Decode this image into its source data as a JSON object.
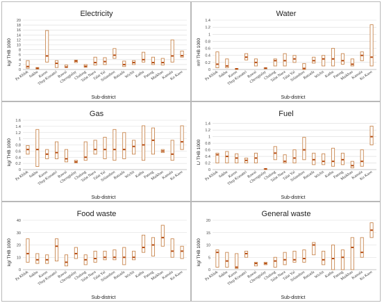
{
  "colors": {
    "box_stroke": "#c8864e",
    "median": "#b5470d",
    "grid": "#d9d9d9",
    "axis": "#8c8c8c"
  },
  "chart_data": [
    {
      "type": "range",
      "title": "Electricity",
      "ylabel": "kg/ THB 1000",
      "xlabel": "Sub-district",
      "ylim": [
        0,
        20
      ],
      "yticks": [
        "0",
        "2",
        "4",
        "6",
        "8",
        "10",
        "12",
        "14",
        "16",
        "18",
        "20"
      ],
      "categories": [
        "Pa Khlok",
        "Sakhu",
        "Karon",
        "Thep Krasattri",
        "Rawai",
        "Cherngtalay",
        "Chalong",
        "Talat Nuea",
        "Talat Yai",
        "SiSunthon",
        "Ratsada",
        "Wichit",
        "Kathu",
        "Patong",
        "Maikhao",
        "Kamala",
        "Ko Kaeo"
      ],
      "values": [
        {
          "min": 0.5,
          "median": 1.2,
          "max": 3.6
        },
        {
          "min": 0.2,
          "median": 0.5,
          "max": 0.8
        },
        {
          "min": 3.0,
          "median": 5.5,
          "max": 15.8
        },
        {
          "min": 0.8,
          "median": 2.5,
          "max": 3.6
        },
        {
          "min": 0.8,
          "median": 1.0,
          "max": 1.8
        },
        {
          "min": 2.8,
          "median": 3.4,
          "max": 3.8
        },
        {
          "min": 0.9,
          "median": 1.3,
          "max": 2.0
        },
        {
          "min": 1.8,
          "median": 2.8,
          "max": 5.0
        },
        {
          "min": 2.0,
          "median": 3.2,
          "max": 4.8
        },
        {
          "min": 4.5,
          "median": 5.8,
          "max": 8.5
        },
        {
          "min": 1.2,
          "median": 2.0,
          "max": 3.4
        },
        {
          "min": 2.0,
          "median": 2.8,
          "max": 3.6
        },
        {
          "min": 3.0,
          "median": 4.0,
          "max": 7.0
        },
        {
          "min": 2.0,
          "median": 2.8,
          "max": 5.0
        },
        {
          "min": 1.8,
          "median": 2.8,
          "max": 4.5
        },
        {
          "min": 3.0,
          "median": 5.5,
          "max": 12.0
        },
        {
          "min": 5.0,
          "median": 5.6,
          "max": 7.5
        }
      ]
    },
    {
      "type": "range",
      "title": "Water",
      "ylabel": "m³/ THB 1000",
      "xlabel": "Sub-district",
      "ylim": [
        0,
        1.4
      ],
      "yticks": [
        "0",
        "0.2",
        "0.4",
        "0.6",
        "0.8",
        "1",
        "1.2",
        "1.4"
      ],
      "categories": [
        "Pa Khlok",
        "Sakhu",
        "Karon",
        "Thep Krasattri",
        "Rawai",
        "Cherngtalay",
        "Chalong",
        "Talat Nuea",
        "Talat Yai",
        "SiSunthon",
        "Ratsada",
        "Wichit",
        "Kathu",
        "Patong",
        "Maikhao",
        "Kamala",
        "Ko Kaeo"
      ],
      "values": [
        {
          "min": 0.05,
          "median": 0.15,
          "max": 0.5
        },
        {
          "min": 0.05,
          "median": 0.1,
          "max": 0.3
        },
        {
          "min": 0.0,
          "median": 0.02,
          "max": 0.03
        },
        {
          "min": 0.27,
          "median": 0.35,
          "max": 0.45
        },
        {
          "min": 0.1,
          "median": 0.2,
          "max": 0.3
        },
        {
          "min": 0.02,
          "median": 0.04,
          "max": 0.05
        },
        {
          "min": 0.1,
          "median": 0.25,
          "max": 0.3
        },
        {
          "min": 0.1,
          "median": 0.25,
          "max": 0.45
        },
        {
          "min": 0.2,
          "median": 0.3,
          "max": 0.4
        },
        {
          "min": 0.0,
          "median": 0.03,
          "max": 0.17
        },
        {
          "min": 0.18,
          "median": 0.25,
          "max": 0.35
        },
        {
          "min": 0.1,
          "median": 0.3,
          "max": 0.4
        },
        {
          "min": 0.1,
          "median": 0.3,
          "max": 0.6
        },
        {
          "min": 0.15,
          "median": 0.25,
          "max": 0.45
        },
        {
          "min": 0.1,
          "median": 0.15,
          "max": 0.3
        },
        {
          "min": 0.25,
          "median": 0.4,
          "max": 0.5
        },
        {
          "min": 0.1,
          "median": 0.35,
          "max": 1.27
        }
      ]
    },
    {
      "type": "range",
      "title": "Gas",
      "ylabel": "kg/ THB 1000",
      "xlabel": "Sub-district",
      "ylim": [
        0,
        1.6
      ],
      "yticks": [
        "0",
        "0.2",
        "0.4",
        "0.6",
        "0.8",
        "1",
        "1.2",
        "1.4",
        "1.6"
      ],
      "categories": [
        "Pa Khlok",
        "Sakhu",
        "Karon",
        "Thep Krasattri",
        "Rawai",
        "Cherngtalay",
        "Chalong",
        "Talat Nuea",
        "Talat Yai",
        "SiSunthon",
        "Ratsada",
        "Wichit",
        "Kathu",
        "Patong",
        "Maikhao",
        "Kamala",
        "Ko Kaeo"
      ],
      "values": [
        {
          "min": 0.5,
          "median": 0.65,
          "max": 0.78
        },
        {
          "min": 0.1,
          "median": 0.65,
          "max": 1.3
        },
        {
          "min": 0.35,
          "median": 0.5,
          "max": 0.65
        },
        {
          "min": 0.35,
          "median": 0.55,
          "max": 0.9
        },
        {
          "min": 0.25,
          "median": 0.35,
          "max": 0.65
        },
        {
          "min": 0.22,
          "median": 0.25,
          "max": 0.3
        },
        {
          "min": 0.3,
          "median": 0.4,
          "max": 0.9
        },
        {
          "min": 0.5,
          "median": 0.65,
          "max": 0.95
        },
        {
          "min": 0.35,
          "median": 0.65,
          "max": 1.05
        },
        {
          "min": 0.3,
          "median": 0.65,
          "max": 1.3
        },
        {
          "min": 0.35,
          "median": 0.65,
          "max": 1.2
        },
        {
          "min": 0.5,
          "median": 0.75,
          "max": 0.95
        },
        {
          "min": 0.3,
          "median": 0.8,
          "max": 1.42
        },
        {
          "min": 0.5,
          "median": 0.95,
          "max": 1.35
        },
        {
          "min": 0.55,
          "median": 0.6,
          "max": 0.65
        },
        {
          "min": 0.3,
          "median": 0.5,
          "max": 0.95
        },
        {
          "min": 0.65,
          "median": 0.9,
          "max": 1.42
        }
      ]
    },
    {
      "type": "range",
      "title": "Fuel",
      "ylabel": "L/ THB 1000",
      "xlabel": "Sub-district",
      "ylim": [
        0,
        1.5
      ],
      "yticks": [
        "0",
        "0.2",
        "0.4",
        "0.6",
        "0.8",
        "1",
        "1.2",
        "1.4"
      ],
      "categories": [
        "Pa Khlok",
        "Sakhu",
        "Karon",
        "Thep Krasattri",
        "Rawai",
        "Cherngtalay",
        "Chalong",
        "Talat Nuea",
        "Talat Yai",
        "SiSunthon",
        "Ratsada",
        "Wichit",
        "Kathu",
        "Patong",
        "Maikhao",
        "Kamala",
        "Ko Kaeo"
      ],
      "values": [
        {
          "min": 0.2,
          "median": 0.45,
          "max": 0.5
        },
        {
          "min": 0.2,
          "median": 0.4,
          "max": 0.55
        },
        {
          "min": 0.2,
          "median": 0.35,
          "max": 0.48
        },
        {
          "min": 0.2,
          "median": 0.28,
          "max": 0.35
        },
        {
          "min": 0.2,
          "median": 0.35,
          "max": 0.5
        },
        {
          "min": 0.0,
          "median": 0.02,
          "max": 0.03
        },
        {
          "min": 0.3,
          "median": 0.5,
          "max": 0.7
        },
        {
          "min": 0.2,
          "median": 0.25,
          "max": 0.45
        },
        {
          "min": 0.2,
          "median": 0.35,
          "max": 0.6
        },
        {
          "min": 0.3,
          "median": 0.6,
          "max": 0.98
        },
        {
          "min": 0.15,
          "median": 0.3,
          "max": 0.5
        },
        {
          "min": 0.15,
          "median": 0.25,
          "max": 0.48
        },
        {
          "min": 0.1,
          "median": 0.25,
          "max": 0.65
        },
        {
          "min": 0.15,
          "median": 0.3,
          "max": 0.5
        },
        {
          "min": 0.05,
          "median": 0.12,
          "max": 0.25
        },
        {
          "min": 0.1,
          "median": 0.25,
          "max": 0.6
        },
        {
          "min": 0.75,
          "median": 1.0,
          "max": 1.32
        }
      ]
    },
    {
      "type": "range",
      "title": "Food waste",
      "ylabel": "kg/ THB 1000",
      "xlabel": "Sub-district",
      "ylim": [
        0,
        40
      ],
      "yticks": [
        "0",
        "10",
        "20",
        "30",
        "40"
      ],
      "categories": [
        "Pa Khlok",
        "Sakhu",
        "Karon",
        "Thep Krasattri",
        "Rawai",
        "Cherngtalay",
        "Chalong",
        "Talat Nuea",
        "Talat Yai",
        "SiSunthon",
        "Ratsada",
        "Wichit",
        "Kathu",
        "Patong",
        "Maikhao",
        "Kamala",
        "Ko Kaeo"
      ],
      "values": [
        {
          "min": 6,
          "median": 13,
          "max": 25
        },
        {
          "min": 5,
          "median": 8,
          "max": 13
        },
        {
          "min": 5,
          "median": 8,
          "max": 12
        },
        {
          "min": 7,
          "median": 19,
          "max": 25
        },
        {
          "min": 3,
          "median": 6,
          "max": 12
        },
        {
          "min": 9,
          "median": 13,
          "max": 18
        },
        {
          "min": 4,
          "median": 8,
          "max": 12
        },
        {
          "min": 6,
          "median": 9,
          "max": 15
        },
        {
          "min": 8,
          "median": 10,
          "max": 15
        },
        {
          "min": 8,
          "median": 10,
          "max": 16
        },
        {
          "min": 4,
          "median": 10,
          "max": 18
        },
        {
          "min": 8,
          "median": 10,
          "max": 15
        },
        {
          "min": 14,
          "median": 18,
          "max": 28
        },
        {
          "min": 11,
          "median": 20,
          "max": 26
        },
        {
          "min": 19,
          "median": 26,
          "max": 36
        },
        {
          "min": 10,
          "median": 15,
          "max": 25
        },
        {
          "min": 9,
          "median": 15,
          "max": 19
        }
      ]
    },
    {
      "type": "range",
      "title": "General waste",
      "ylabel": "kg/ THB 1000",
      "xlabel": "Sub-district",
      "ylim": [
        0,
        20
      ],
      "yticks": [
        "0",
        "5",
        "10",
        "15",
        "20"
      ],
      "categories": [
        "Pa Khlok",
        "Sakhu",
        "Karon",
        "Thep Krasattri",
        "Rawai",
        "Cherngtalay",
        "Chalong",
        "Talat Nuea",
        "Talat Yai",
        "SiSunthon",
        "Ratsada",
        "Wichit",
        "Kathu",
        "Patong",
        "Maikhao",
        "Kamala",
        "Ko Kaeo"
      ],
      "values": [
        {
          "min": 1,
          "median": 7,
          "max": 8
        },
        {
          "min": 1,
          "median": 3.5,
          "max": 7
        },
        {
          "min": 0.5,
          "median": 1,
          "max": 6.5
        },
        {
          "min": 5,
          "median": 6.5,
          "max": 7.5
        },
        {
          "min": 1.5,
          "median": 2.5,
          "max": 3
        },
        {
          "min": 2,
          "median": 2.5,
          "max": 3
        },
        {
          "min": 1,
          "median": 3.5,
          "max": 5
        },
        {
          "min": 2,
          "median": 4,
          "max": 7
        },
        {
          "min": 3,
          "median": 4,
          "max": 7.5
        },
        {
          "min": 3,
          "median": 4.5,
          "max": 8
        },
        {
          "min": 6,
          "median": 10,
          "max": 11
        },
        {
          "min": 2,
          "median": 4,
          "max": 7.5
        },
        {
          "min": 0,
          "median": 4.5,
          "max": 10
        },
        {
          "min": 0,
          "median": 5,
          "max": 8
        },
        {
          "min": 0,
          "median": 9,
          "max": 13
        },
        {
          "min": 5,
          "median": 7,
          "max": 13
        },
        {
          "min": 13,
          "median": 16,
          "max": 19
        }
      ]
    }
  ]
}
